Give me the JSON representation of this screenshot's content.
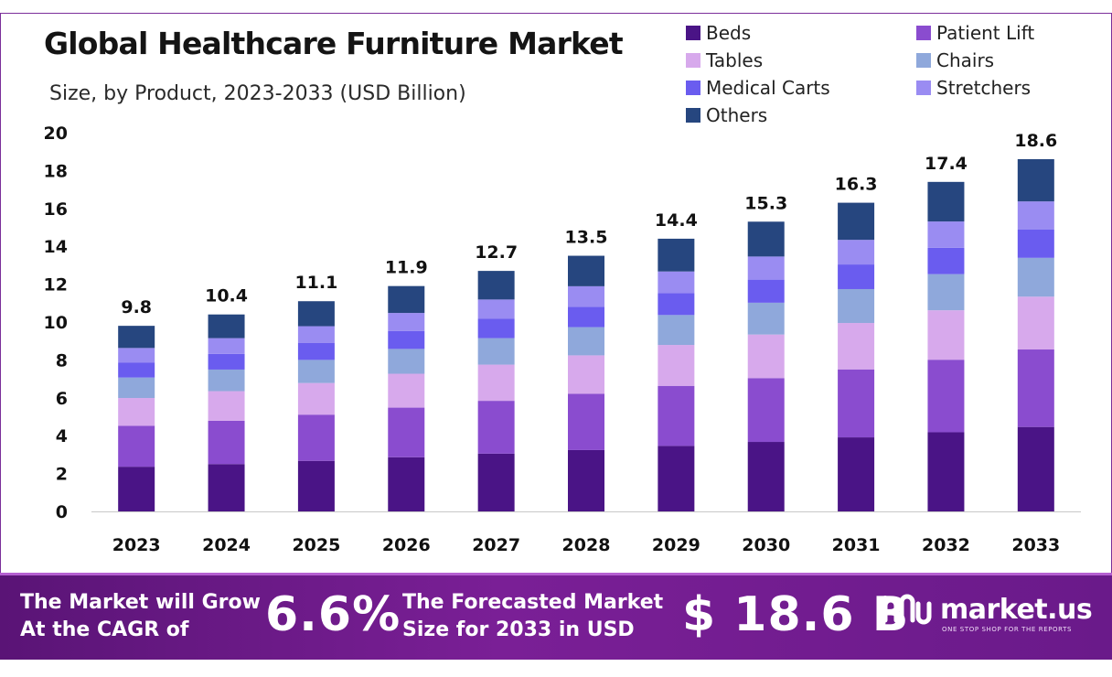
{
  "header": {
    "title": "Global Healthcare Furniture Market",
    "subtitle": "Size, by Product, 2023-2033 (USD Billion)"
  },
  "chart_data": {
    "type": "bar",
    "stacked": true,
    "title": "Global Healthcare Furniture Market",
    "subtitle": "Size, by Product, 2023-2033 (USD Billion)",
    "xlabel": "",
    "ylabel": "",
    "ylim": [
      0,
      20
    ],
    "yticks": [
      0,
      2,
      4,
      6,
      8,
      10,
      12,
      14,
      16,
      18,
      20
    ],
    "grid": false,
    "legend_position": "top-right",
    "categories": [
      "2023",
      "2024",
      "2025",
      "2026",
      "2027",
      "2028",
      "2029",
      "2030",
      "2031",
      "2032",
      "2033"
    ],
    "totals": [
      9.8,
      10.4,
      11.1,
      11.9,
      12.7,
      13.5,
      14.4,
      15.3,
      16.3,
      17.4,
      18.6
    ],
    "total_labels": [
      "9.8",
      "10.4",
      "11.1",
      "11.9",
      "12.7",
      "13.5",
      "14.4",
      "15.3",
      "16.3",
      "17.4",
      "18.6"
    ],
    "series": [
      {
        "name": "Beds",
        "color": "#4a1486",
        "values": [
          2.36,
          2.5,
          2.67,
          2.86,
          3.05,
          3.24,
          3.46,
          3.67,
          3.91,
          4.18,
          4.46
        ]
      },
      {
        "name": "Patient Lift",
        "color": "#8a4ccf",
        "values": [
          2.16,
          2.29,
          2.44,
          2.62,
          2.79,
          2.97,
          3.17,
          3.37,
          3.59,
          3.83,
          4.09
        ]
      },
      {
        "name": "Tables",
        "color": "#d7a9ec",
        "values": [
          1.47,
          1.56,
          1.67,
          1.79,
          1.91,
          2.03,
          2.16,
          2.3,
          2.45,
          2.61,
          2.79
        ]
      },
      {
        "name": "Chairs",
        "color": "#8fa8db",
        "values": [
          1.08,
          1.14,
          1.22,
          1.31,
          1.4,
          1.49,
          1.58,
          1.68,
          1.79,
          1.91,
          2.05
        ]
      },
      {
        "name": "Medical Carts",
        "color": "#6a5cef",
        "values": [
          0.78,
          0.83,
          0.89,
          0.95,
          1.02,
          1.08,
          1.15,
          1.22,
          1.3,
          1.39,
          1.49
        ]
      },
      {
        "name": "Stretchers",
        "color": "#9a8cf2",
        "values": [
          0.78,
          0.83,
          0.89,
          0.95,
          1.02,
          1.08,
          1.15,
          1.22,
          1.3,
          1.39,
          1.49
        ]
      },
      {
        "name": "Others",
        "color": "#26467f",
        "values": [
          1.17,
          1.25,
          1.32,
          1.42,
          1.51,
          1.61,
          1.73,
          1.84,
          1.96,
          2.09,
          2.23
        ]
      }
    ]
  },
  "banner": {
    "cagr_text_line1": "The Market will Grow",
    "cagr_text_line2": "At the CAGR of",
    "cagr_value": "6.6%",
    "forecast_text_line1": "The Forecasted Market",
    "forecast_text_line2": "Size for 2033 in USD",
    "forecast_value": "$ 18.6 B",
    "brand_name": "market.us",
    "brand_tagline": "ONE STOP SHOP FOR THE REPORTS"
  },
  "colors": {
    "banner_bg": "#6a1a8a",
    "frame": "#7b2f9a"
  }
}
